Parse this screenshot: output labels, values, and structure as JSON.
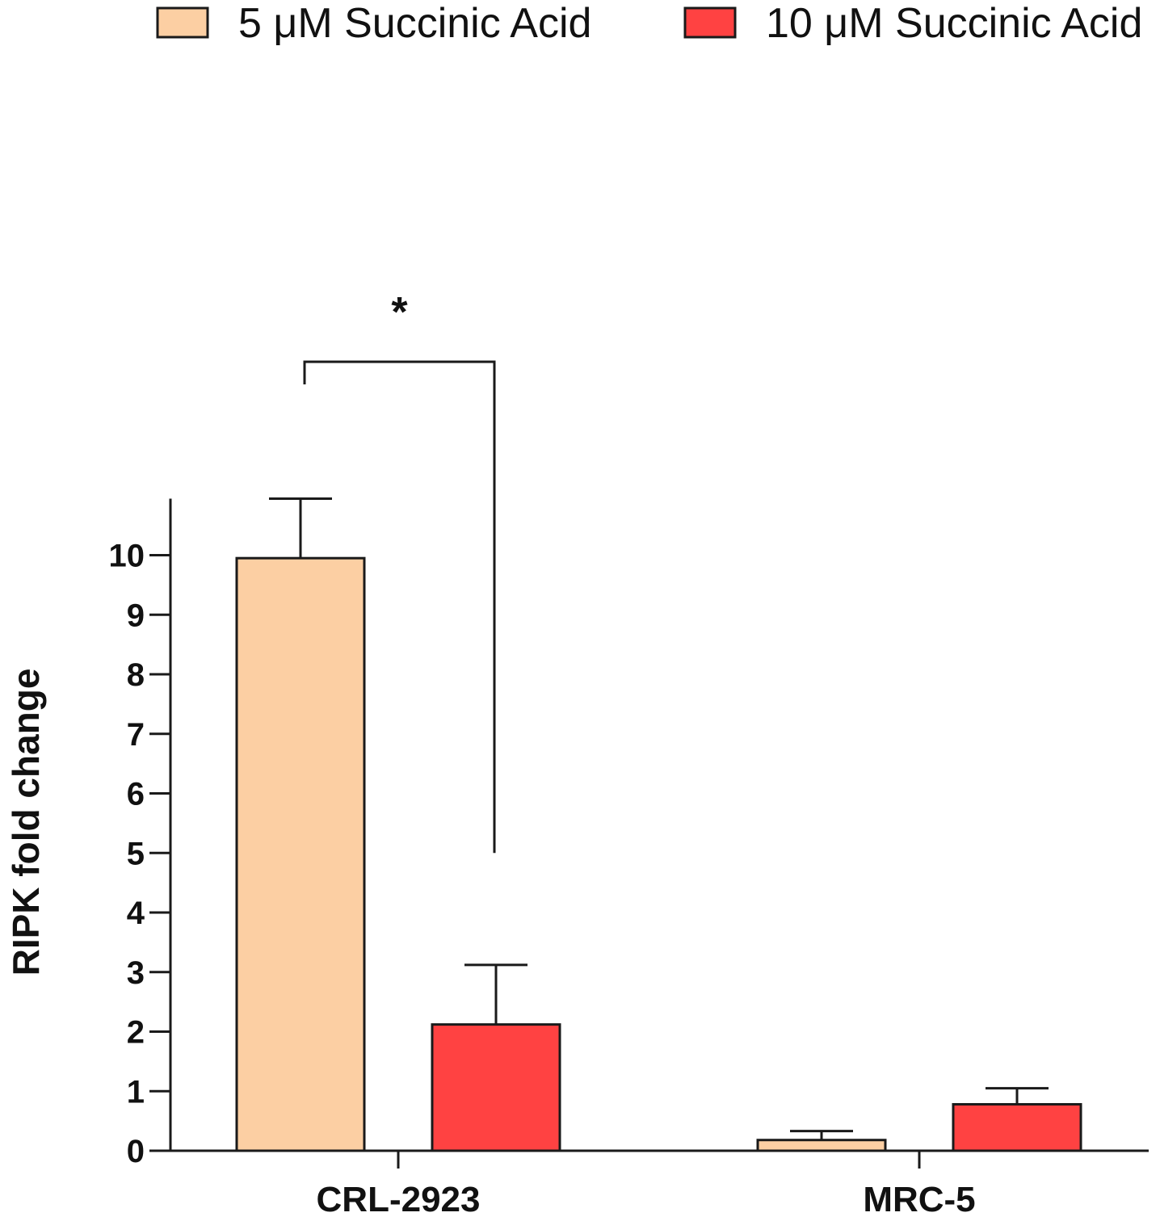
{
  "chart_data": {
    "type": "bar",
    "categories": [
      "CRL-2923",
      "MRC-5"
    ],
    "series": [
      {
        "name": "5 μM Succinic Acid",
        "values": [
          9.95,
          0.18
        ],
        "errors": [
          1.0,
          0.15
        ],
        "color": "#FCCFA3"
      },
      {
        "name": "10 μM Succinic Acid",
        "values": [
          2.12,
          0.78
        ],
        "errors": [
          1.0,
          0.27
        ],
        "color": "#FF4242"
      }
    ],
    "ylabel": "RIPK fold change",
    "xlabel": "",
    "ylim": [
      0,
      10.95
    ],
    "yticks": [
      0,
      1,
      2,
      3,
      4,
      5,
      6,
      7,
      8,
      9,
      10
    ],
    "legend_position": "top",
    "grid": false,
    "annotations": [
      {
        "type": "significance",
        "label": "*",
        "category": "CRL-2923",
        "bracket_y": [
          13.2,
          13.6,
          5.0
        ]
      }
    ]
  }
}
